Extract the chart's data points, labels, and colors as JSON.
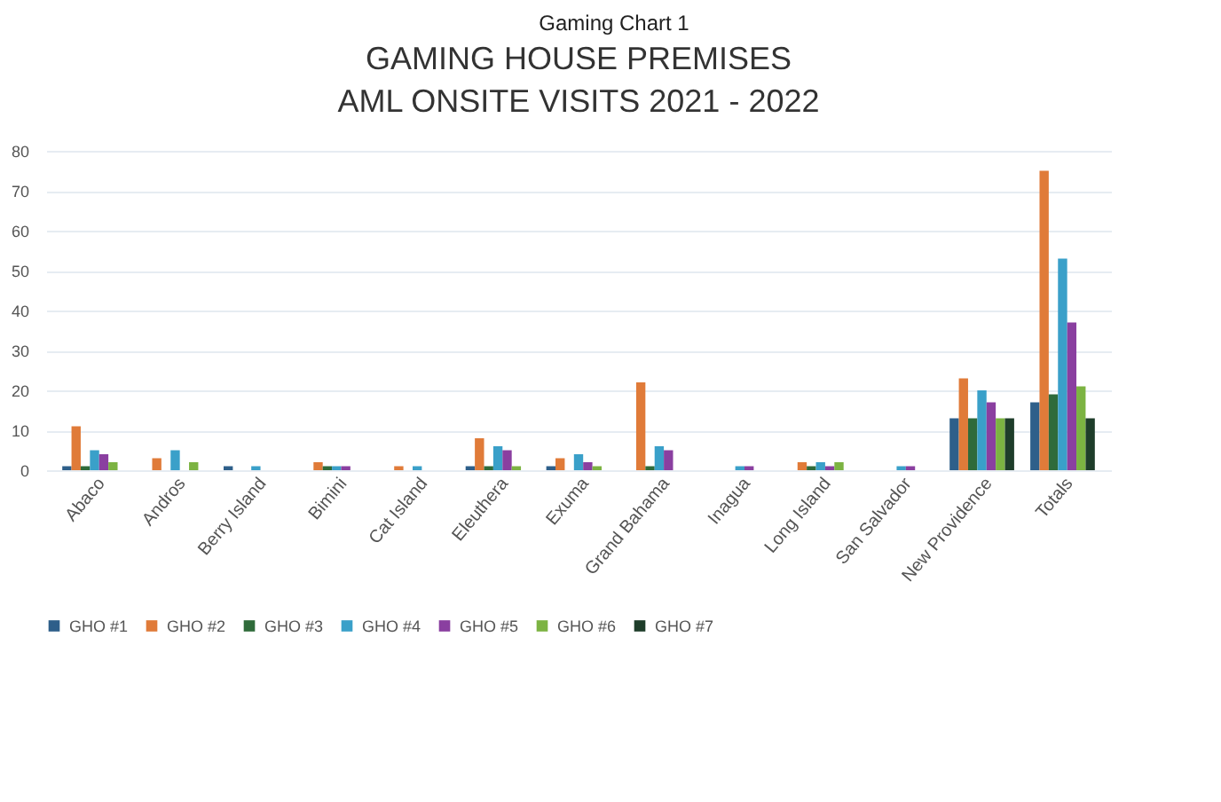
{
  "chart_data": {
    "type": "bar",
    "title": "GAMING HOUSE PREMISES",
    "subtitle": "AML ONSITE VISITS 2021 - 2022",
    "annotations": [
      "Gaming Chart 1"
    ],
    "categories": [
      "Abaco",
      "Andros",
      "Berry Island",
      "Bimini",
      "Cat Island",
      "Eleuthera",
      "Exuma",
      "Grand Bahama",
      "Inagua",
      "Long Island",
      "San Salvador",
      "New Providence",
      "Totals"
    ],
    "series": [
      {
        "name": "GHO #1",
        "color": "#2e5f8a",
        "values": [
          1,
          0,
          1,
          0,
          0,
          1,
          1,
          0,
          0,
          0,
          0,
          13,
          17
        ]
      },
      {
        "name": "GHO #2",
        "color": "#e07b39",
        "values": [
          11,
          3,
          0,
          2,
          1,
          8,
          3,
          22,
          0,
          2,
          0,
          23,
          75
        ]
      },
      {
        "name": "GHO #3",
        "color": "#2f6b3a",
        "values": [
          1,
          0,
          0,
          1,
          0,
          1,
          0,
          1,
          0,
          1,
          0,
          13,
          19
        ]
      },
      {
        "name": "GHO #4",
        "color": "#3aa0c9",
        "values": [
          5,
          5,
          1,
          1,
          1,
          6,
          4,
          6,
          1,
          2,
          1,
          20,
          53
        ]
      },
      {
        "name": "GHO #5",
        "color": "#8a3fa0",
        "values": [
          4,
          0,
          0,
          1,
          0,
          5,
          2,
          5,
          1,
          1,
          1,
          17,
          37
        ]
      },
      {
        "name": "GHO #6",
        "color": "#7cb342",
        "values": [
          2,
          2,
          0,
          0,
          0,
          1,
          1,
          0,
          0,
          2,
          0,
          13,
          21
        ]
      },
      {
        "name": "GHO #7",
        "color": "#1e3d2a",
        "values": [
          0,
          0,
          0,
          0,
          0,
          0,
          0,
          0,
          0,
          0,
          0,
          13,
          13
        ]
      }
    ],
    "ylim": [
      0,
      80
    ],
    "yticks": [
      0,
      10,
      20,
      30,
      40,
      50,
      60,
      70,
      80
    ],
    "grid": "y",
    "legend": "bottom"
  }
}
